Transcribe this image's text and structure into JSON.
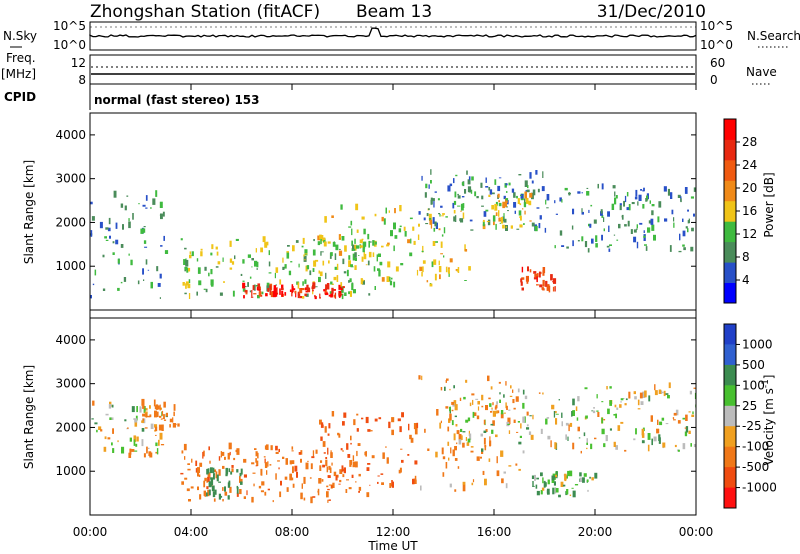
{
  "header": {
    "station": "Zhongshan Station (fitACF)",
    "beam": "Beam 13",
    "date": "31/Dec/2010"
  },
  "noise_panel": {
    "left_label": "N.Sky",
    "right_label": "N.Search",
    "left_ticks": [
      "10^5",
      "10^0"
    ],
    "right_ticks": [
      "10^5",
      "10^0"
    ]
  },
  "freq_panel": {
    "left_label_1": "Freq.",
    "left_label_2": "[MHz]",
    "left_ticks": [
      "12",
      "8"
    ],
    "right_label": "Nave",
    "right_ticks": [
      "60",
      "0"
    ]
  },
  "cpid": {
    "label": "CPID",
    "text": "normal (fast stereo) 153"
  },
  "colors": {
    "power_scale": [
      "#0000ff",
      "#2850c8",
      "#4a8c5a",
      "#3fba3f",
      "#f0c418",
      "#f08a18",
      "#f05a10",
      "#e82810",
      "#ff0000"
    ],
    "velocity_scale": [
      "#2040c8",
      "#3060d0",
      "#3c8c50",
      "#48c030",
      "#bcbcbc",
      "#f0a020",
      "#f07818",
      "#f04c10",
      "#ff1010"
    ]
  },
  "chart_data": [
    {
      "type": "heatmap",
      "title": "",
      "xlabel": "Time UT",
      "ylabel": "Slant Range [km]",
      "x_ticks": [
        "00:00",
        "04:00",
        "08:00",
        "12:00",
        "16:00",
        "20:00",
        "00:00"
      ],
      "y_ticks": [
        "1000",
        "2000",
        "3000",
        "4000"
      ],
      "ylim": [
        0,
        4500
      ],
      "colorbar_label": "Power [dB]",
      "colorbar_ticks": [
        "4",
        "8",
        "12",
        "16",
        "20",
        "24",
        "28"
      ],
      "colorbar_range": [
        0,
        30
      ],
      "data_regions": [
        {
          "t0": 0.0,
          "t1": 3.0,
          "r0": 250,
          "r1": 2600,
          "value": 8
        },
        {
          "t0": 3.5,
          "t1": 11.5,
          "r0": 250,
          "r1": 1600,
          "value": 12
        },
        {
          "t0": 6.0,
          "t1": 10.0,
          "r0": 250,
          "r1": 500,
          "value": 26
        },
        {
          "t0": 9.0,
          "t1": 15.0,
          "r0": 500,
          "r1": 2300,
          "value": 14
        },
        {
          "t0": 13.0,
          "t1": 18.0,
          "r0": 1800,
          "r1": 3100,
          "value": 8
        },
        {
          "t0": 15.5,
          "t1": 17.5,
          "r0": 1800,
          "r1": 2600,
          "value": 16
        },
        {
          "t0": 17.0,
          "t1": 18.5,
          "r0": 400,
          "r1": 900,
          "value": 24
        },
        {
          "t0": 18.0,
          "t1": 24.0,
          "r0": 1300,
          "r1": 2800,
          "value": 8
        }
      ]
    },
    {
      "type": "heatmap",
      "title": "",
      "xlabel": "Time UT",
      "ylabel": "Slant Range [km]",
      "x_ticks": [
        "00:00",
        "04:00",
        "08:00",
        "12:00",
        "16:00",
        "20:00",
        "00:00"
      ],
      "y_ticks": [
        "1000",
        "2000",
        "3000",
        "4000"
      ],
      "ylim": [
        0,
        4500
      ],
      "colorbar_label": "Velocity [m s-1]",
      "colorbar_ticks": [
        "1000",
        "500",
        "100",
        "25",
        "-25",
        "-100",
        "-500",
        "-1000"
      ],
      "colorbar_range": [
        -1000,
        1000
      ],
      "data_regions": [
        {
          "t0": 0.0,
          "t1": 3.0,
          "r0": 1300,
          "r1": 2500,
          "value": 0
        },
        {
          "t0": 2.0,
          "t1": 3.5,
          "r0": 1900,
          "r1": 2500,
          "value": -300
        },
        {
          "t0": 3.5,
          "t1": 11.0,
          "r0": 250,
          "r1": 1500,
          "value": -400
        },
        {
          "t0": 4.5,
          "t1": 6.0,
          "r0": 300,
          "r1": 1000,
          "value": 300
        },
        {
          "t0": 9.0,
          "t1": 13.0,
          "r0": 500,
          "r1": 2300,
          "value": -500
        },
        {
          "t0": 13.0,
          "t1": 17.0,
          "r0": 500,
          "r1": 3100,
          "value": -150
        },
        {
          "t0": 14.0,
          "t1": 24.0,
          "r0": 1400,
          "r1": 2900,
          "value": 0
        },
        {
          "t0": 17.5,
          "t1": 20.0,
          "r0": 400,
          "r1": 900,
          "value": 80
        }
      ]
    }
  ]
}
